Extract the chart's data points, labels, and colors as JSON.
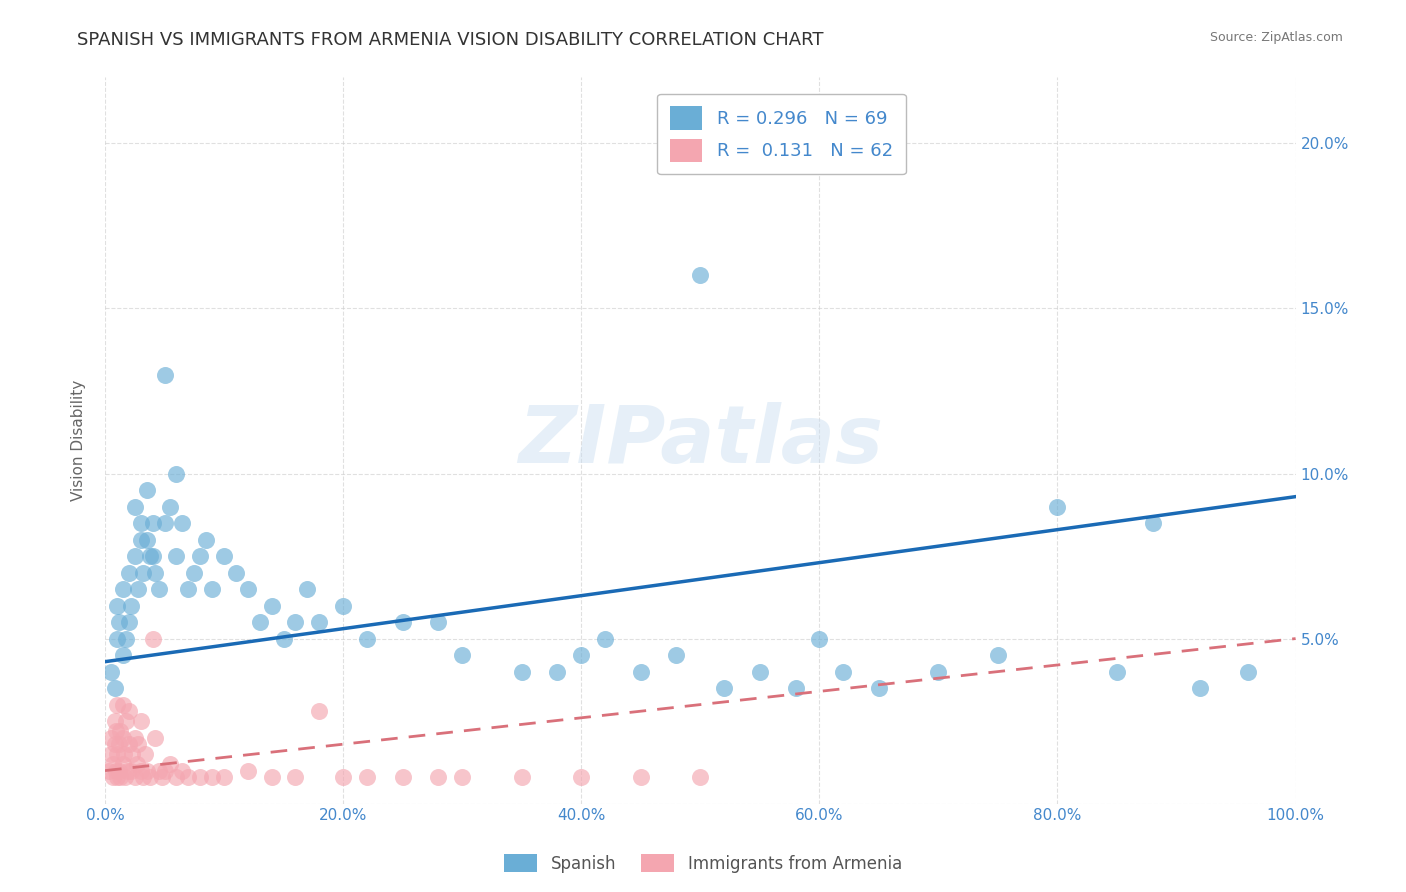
{
  "title": "SPANISH VS IMMIGRANTS FROM ARMENIA VISION DISABILITY CORRELATION CHART",
  "source": "Source: ZipAtlas.com",
  "ylabel": "Vision Disability",
  "watermark": "ZIPatlas",
  "legend_r_blue": "0.296",
  "legend_n_blue": "69",
  "legend_r_pink": "0.131",
  "legend_n_pink": "62",
  "legend_label_blue": "Spanish",
  "legend_label_pink": "Immigrants from Armenia",
  "xlim": [
    0.0,
    1.0
  ],
  "ylim": [
    0.0,
    0.22
  ],
  "xticks": [
    0.0,
    0.2,
    0.4,
    0.6,
    0.8,
    1.0
  ],
  "yticks": [
    0.0,
    0.05,
    0.1,
    0.15,
    0.2
  ],
  "xtick_labels": [
    "0.0%",
    "20.0%",
    "40.0%",
    "60.0%",
    "80.0%",
    "100.0%"
  ],
  "ytick_labels": [
    "",
    "5.0%",
    "10.0%",
    "15.0%",
    "20.0%"
  ],
  "title_fontsize": 13,
  "axis_label_fontsize": 11,
  "tick_fontsize": 11,
  "blue_color": "#6aaed6",
  "pink_color": "#f4a6b0",
  "trend_blue_color": "#1a6ab5",
  "trend_pink_color": "#d9707a",
  "background_color": "#ffffff",
  "grid_color": "#cccccc",
  "title_color": "#333333",
  "source_color": "#777777",
  "axis_tick_color": "#4488cc",
  "blue_scatter_x": [
    0.005,
    0.008,
    0.01,
    0.01,
    0.012,
    0.015,
    0.015,
    0.018,
    0.02,
    0.02,
    0.022,
    0.025,
    0.025,
    0.028,
    0.03,
    0.03,
    0.032,
    0.035,
    0.035,
    0.038,
    0.04,
    0.04,
    0.042,
    0.045,
    0.05,
    0.05,
    0.055,
    0.06,
    0.06,
    0.065,
    0.07,
    0.075,
    0.08,
    0.085,
    0.09,
    0.1,
    0.11,
    0.12,
    0.13,
    0.14,
    0.15,
    0.16,
    0.17,
    0.18,
    0.2,
    0.22,
    0.25,
    0.28,
    0.3,
    0.35,
    0.38,
    0.4,
    0.42,
    0.45,
    0.48,
    0.5,
    0.52,
    0.55,
    0.58,
    0.6,
    0.62,
    0.65,
    0.7,
    0.75,
    0.8,
    0.85,
    0.88,
    0.92,
    0.96
  ],
  "blue_scatter_y": [
    0.04,
    0.035,
    0.05,
    0.06,
    0.055,
    0.045,
    0.065,
    0.05,
    0.07,
    0.055,
    0.06,
    0.075,
    0.09,
    0.065,
    0.08,
    0.085,
    0.07,
    0.08,
    0.095,
    0.075,
    0.085,
    0.075,
    0.07,
    0.065,
    0.13,
    0.085,
    0.09,
    0.1,
    0.075,
    0.085,
    0.065,
    0.07,
    0.075,
    0.08,
    0.065,
    0.075,
    0.07,
    0.065,
    0.055,
    0.06,
    0.05,
    0.055,
    0.065,
    0.055,
    0.06,
    0.05,
    0.055,
    0.055,
    0.045,
    0.04,
    0.04,
    0.045,
    0.05,
    0.04,
    0.045,
    0.16,
    0.035,
    0.04,
    0.035,
    0.05,
    0.04,
    0.035,
    0.04,
    0.045,
    0.09,
    0.04,
    0.085,
    0.035,
    0.04
  ],
  "pink_scatter_x": [
    0.003,
    0.005,
    0.005,
    0.007,
    0.007,
    0.008,
    0.008,
    0.009,
    0.009,
    0.01,
    0.01,
    0.01,
    0.012,
    0.012,
    0.013,
    0.013,
    0.015,
    0.015,
    0.015,
    0.016,
    0.017,
    0.018,
    0.019,
    0.02,
    0.02,
    0.022,
    0.023,
    0.025,
    0.025,
    0.027,
    0.028,
    0.03,
    0.03,
    0.032,
    0.034,
    0.035,
    0.038,
    0.04,
    0.042,
    0.045,
    0.048,
    0.05,
    0.055,
    0.06,
    0.065,
    0.07,
    0.08,
    0.09,
    0.1,
    0.12,
    0.14,
    0.16,
    0.18,
    0.2,
    0.22,
    0.25,
    0.28,
    0.3,
    0.35,
    0.4,
    0.45,
    0.5
  ],
  "pink_scatter_y": [
    0.01,
    0.015,
    0.02,
    0.008,
    0.012,
    0.018,
    0.025,
    0.01,
    0.022,
    0.008,
    0.015,
    0.03,
    0.01,
    0.018,
    0.008,
    0.022,
    0.012,
    0.02,
    0.03,
    0.015,
    0.008,
    0.025,
    0.01,
    0.018,
    0.028,
    0.01,
    0.015,
    0.02,
    0.008,
    0.012,
    0.018,
    0.01,
    0.025,
    0.008,
    0.015,
    0.01,
    0.008,
    0.05,
    0.02,
    0.01,
    0.008,
    0.01,
    0.012,
    0.008,
    0.01,
    0.008,
    0.008,
    0.008,
    0.008,
    0.01,
    0.008,
    0.008,
    0.028,
    0.008,
    0.008,
    0.008,
    0.008,
    0.008,
    0.008,
    0.008,
    0.008,
    0.008
  ],
  "blue_trend_x": [
    0.0,
    1.0
  ],
  "blue_trend_y_start": 0.043,
  "blue_trend_y_end": 0.093,
  "pink_trend_x": [
    0.0,
    1.0
  ],
  "pink_trend_y_start": 0.01,
  "pink_trend_y_end": 0.05
}
